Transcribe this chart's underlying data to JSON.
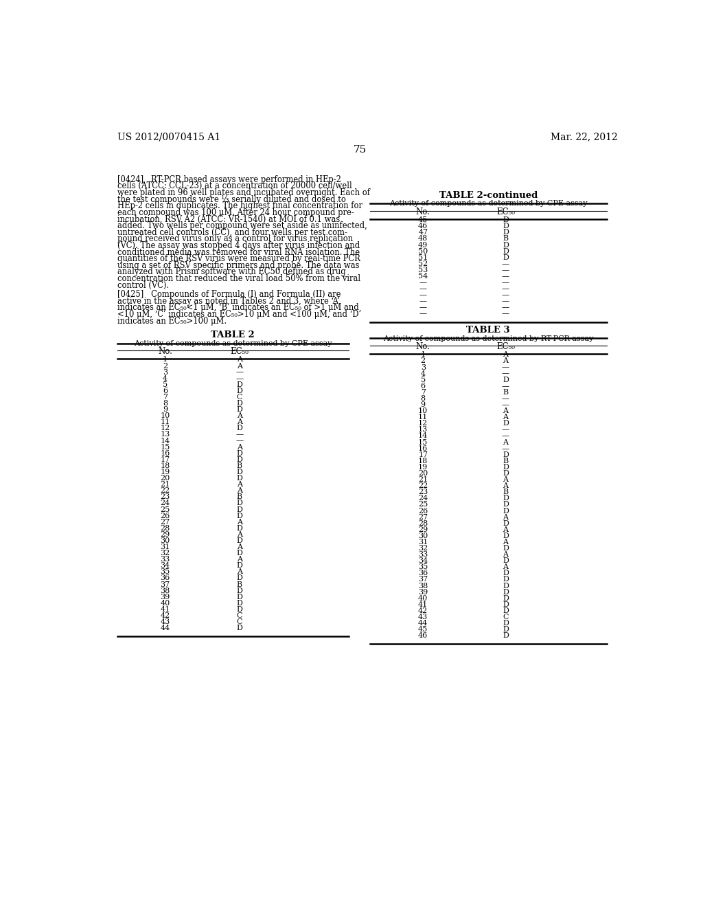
{
  "header_left": "US 2012/0070415 A1",
  "header_right": "Mar. 22, 2012",
  "page_number": "75",
  "background_color": "#ffffff",
  "text_color": "#000000",
  "table2_title": "TABLE 2",
  "table2_subtitle": "Activity of compounds as determined by CPE assay",
  "table2_col1": "No.",
  "table2_col2": "EC₅₀",
  "table2_data": [
    [
      "1",
      "A"
    ],
    [
      "2",
      "A"
    ],
    [
      "3",
      "—"
    ],
    [
      "4",
      "—"
    ],
    [
      "5",
      "D"
    ],
    [
      "6",
      "D"
    ],
    [
      "7",
      "C"
    ],
    [
      "8",
      "D"
    ],
    [
      "9",
      "D"
    ],
    [
      "10",
      "A"
    ],
    [
      "11",
      "A"
    ],
    [
      "12",
      "D"
    ],
    [
      "13",
      "—"
    ],
    [
      "14",
      "—"
    ],
    [
      "15",
      "A"
    ],
    [
      "16",
      "D"
    ],
    [
      "17",
      "D"
    ],
    [
      "18",
      "B"
    ],
    [
      "19",
      "D"
    ],
    [
      "20",
      "D"
    ],
    [
      "21",
      "A"
    ],
    [
      "22",
      "A"
    ],
    [
      "23",
      "B"
    ],
    [
      "24",
      "D"
    ],
    [
      "25",
      "D"
    ],
    [
      "26",
      "D"
    ],
    [
      "27",
      "A"
    ],
    [
      "28",
      "D"
    ],
    [
      "29",
      "A"
    ],
    [
      "30",
      "D"
    ],
    [
      "31",
      "A"
    ],
    [
      "32",
      "D"
    ],
    [
      "33",
      "A"
    ],
    [
      "34",
      "D"
    ],
    [
      "35",
      "A"
    ],
    [
      "36",
      "D"
    ],
    [
      "37",
      "B"
    ],
    [
      "38",
      "D"
    ],
    [
      "39",
      "D"
    ],
    [
      "40",
      "D"
    ],
    [
      "41",
      "D"
    ],
    [
      "42",
      "C"
    ],
    [
      "43",
      "C"
    ],
    [
      "44",
      "D"
    ]
  ],
  "table2cont_title": "TABLE 2-continued",
  "table2cont_subtitle": "Activity of compounds as determined by CPE assay",
  "table2cont_data": [
    [
      "45",
      "D"
    ],
    [
      "46",
      "D"
    ],
    [
      "47",
      "D"
    ],
    [
      "48",
      "B"
    ],
    [
      "49",
      "D"
    ],
    [
      "50",
      "D"
    ],
    [
      "51",
      "D"
    ],
    [
      "52",
      "—"
    ],
    [
      "53",
      "—"
    ],
    [
      "54",
      "—"
    ],
    [
      "—",
      "—"
    ],
    [
      "—",
      "—"
    ],
    [
      "—",
      "—"
    ],
    [
      "—",
      "—"
    ],
    [
      "—",
      "—"
    ],
    [
      "—",
      "—"
    ]
  ],
  "table3_title": "TABLE 3",
  "table3_subtitle": "Activity of compounds as determined by RT-PCR assay",
  "table3_col1": "No.",
  "table3_col2": "EC₅₀",
  "table3_data": [
    [
      "1",
      "A"
    ],
    [
      "2",
      "A"
    ],
    [
      "3",
      "—"
    ],
    [
      "4",
      "—"
    ],
    [
      "5",
      "D"
    ],
    [
      "6",
      "—"
    ],
    [
      "7",
      "B"
    ],
    [
      "8",
      "—"
    ],
    [
      "9",
      "—"
    ],
    [
      "10",
      "A"
    ],
    [
      "11",
      "A"
    ],
    [
      "12",
      "D"
    ],
    [
      "13",
      "—"
    ],
    [
      "14",
      "—"
    ],
    [
      "15",
      "A"
    ],
    [
      "16",
      "—"
    ],
    [
      "17",
      "D"
    ],
    [
      "18",
      "B"
    ],
    [
      "19",
      "D"
    ],
    [
      "20",
      "D"
    ],
    [
      "21",
      "A"
    ],
    [
      "22",
      "A"
    ],
    [
      "23",
      "B"
    ],
    [
      "24",
      "D"
    ],
    [
      "25",
      "D"
    ],
    [
      "26",
      "D"
    ],
    [
      "27",
      "A"
    ],
    [
      "28",
      "D"
    ],
    [
      "29",
      "A"
    ],
    [
      "30",
      "D"
    ],
    [
      "31",
      "A"
    ],
    [
      "32",
      "D"
    ],
    [
      "33",
      "A"
    ],
    [
      "34",
      "D"
    ],
    [
      "35",
      "A"
    ],
    [
      "36",
      "D"
    ],
    [
      "37",
      "D"
    ],
    [
      "38",
      "D"
    ],
    [
      "39",
      "D"
    ],
    [
      "40",
      "D"
    ],
    [
      "41",
      "D"
    ],
    [
      "42",
      "D"
    ],
    [
      "43",
      "C"
    ],
    [
      "44",
      "D"
    ],
    [
      "45",
      "D"
    ],
    [
      "46",
      "D"
    ]
  ],
  "p0424_lines": [
    "[0424]   RT-PCR based assays were performed in HEp-2",
    "cells (ATCC: CCL-23) at a concentration of 20000 cell/well",
    "were plated in 96 well plates and incubated overnight. Each of",
    "the test compounds were ⅓ serially diluted and dosed to",
    "HEp-2 cells in duplicates. The highest final concentration for",
    "each compound was 100 μM. After 24 hour compound pre-",
    "incubation, RSV A2 (ATCC: VR-1540) at MOI of 0.1 was",
    "added. Two wells per compound were set aside as uninfected,",
    "untreated cell controls (CC), and four wells per test com-",
    "pound received virus only as a control for virus replication",
    "(VC). The assay was stopped 4 days after virus infection and",
    "conditioned media was removed for viral RNA isolation. The",
    "quantities of the RSV virus were measured by real-time PCR",
    "using a set of RSV specific primers and probe. The data was",
    "analyzed with Prism software with EC50 defined as drug",
    "concentration that reduced the viral load 50% from the viral",
    "control (VC)."
  ],
  "p0425_lines": [
    "[0425]   Compounds of Formula (I) and Formula (II) are",
    "active in the assay as noted in Tables 2 and 3, where ‘A’",
    "indicates an EC₅₀<1 μM, ‘B’ indicates an EC₅₀ of >1 μM and",
    "<10 μM, ‘C’ indicates an EC₅₀>10 μM and <100 μM, and ‘D’",
    "indicates an EC₅₀>100 μM."
  ]
}
